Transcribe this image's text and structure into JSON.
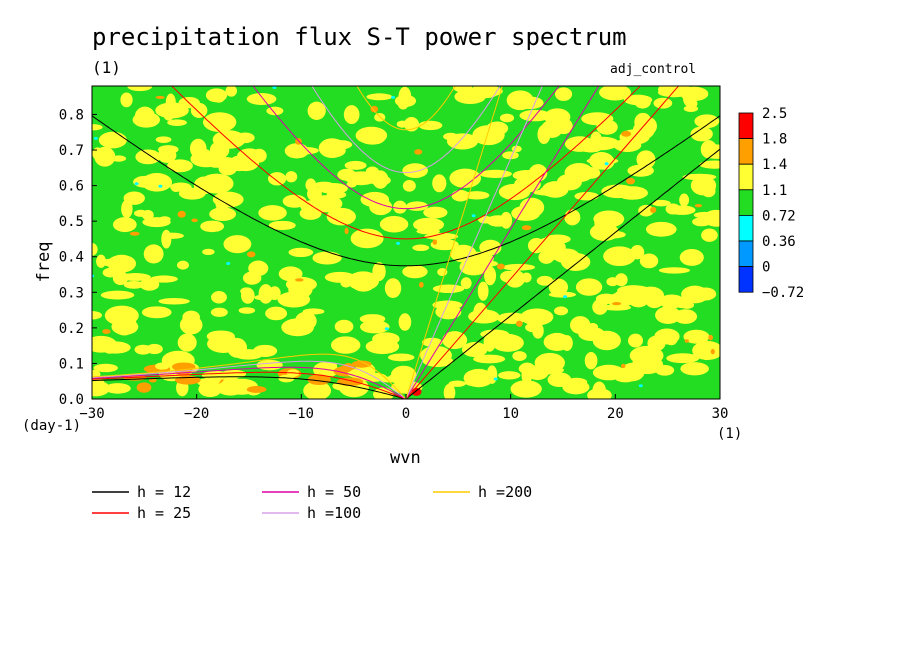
{
  "chart_data": {
    "type": "heatmap",
    "title": "precipitation flux S-T power spectrum",
    "units_label": "(1)",
    "run_label": "adj_control",
    "xlabel": "wvn",
    "ylabel": "freq",
    "x_units": "(1)",
    "y_units": "(day-1)",
    "xlim": [
      -30,
      30
    ],
    "ylim": [
      0,
      0.88
    ],
    "x_ticks": [
      -30,
      -20,
      -10,
      0,
      10,
      20,
      30
    ],
    "y_ticks": [
      0.0,
      0.1,
      0.2,
      0.3,
      0.4,
      0.5,
      0.6,
      0.7,
      0.8
    ],
    "x_tick_labels": [
      "−30",
      "−20",
      "−10",
      "0",
      "10",
      "20",
      "30"
    ],
    "y_tick_labels": [
      "0.0",
      "0.1",
      "0.2",
      "0.3",
      "0.4",
      "0.5",
      "0.6",
      "0.7",
      "0.8"
    ],
    "colorbar": {
      "labels": [
        "2.5",
        "1.8",
        "1.4",
        "1.1",
        "0.72",
        "0.36",
        "0",
        "−0.72"
      ],
      "colors": [
        "#ff0000",
        "#ff9f00",
        "#ffff33",
        "#22dd22",
        "#00ffff",
        "#0099ff",
        "#0033ff"
      ],
      "dominant_color": "#22dd22"
    },
    "dispersion_curves": {
      "equivalent_depths": [
        12,
        25,
        50,
        100,
        200
      ],
      "legend_labels": [
        "h = 12",
        "h = 25",
        "h = 50",
        "h =100",
        "h =200"
      ],
      "colors": [
        "#000000",
        "#ff0000",
        "#dd00aa",
        "#d8a0e8",
        "#ffcc00"
      ]
    },
    "grid": false,
    "legend_placement": "bottom-left"
  }
}
